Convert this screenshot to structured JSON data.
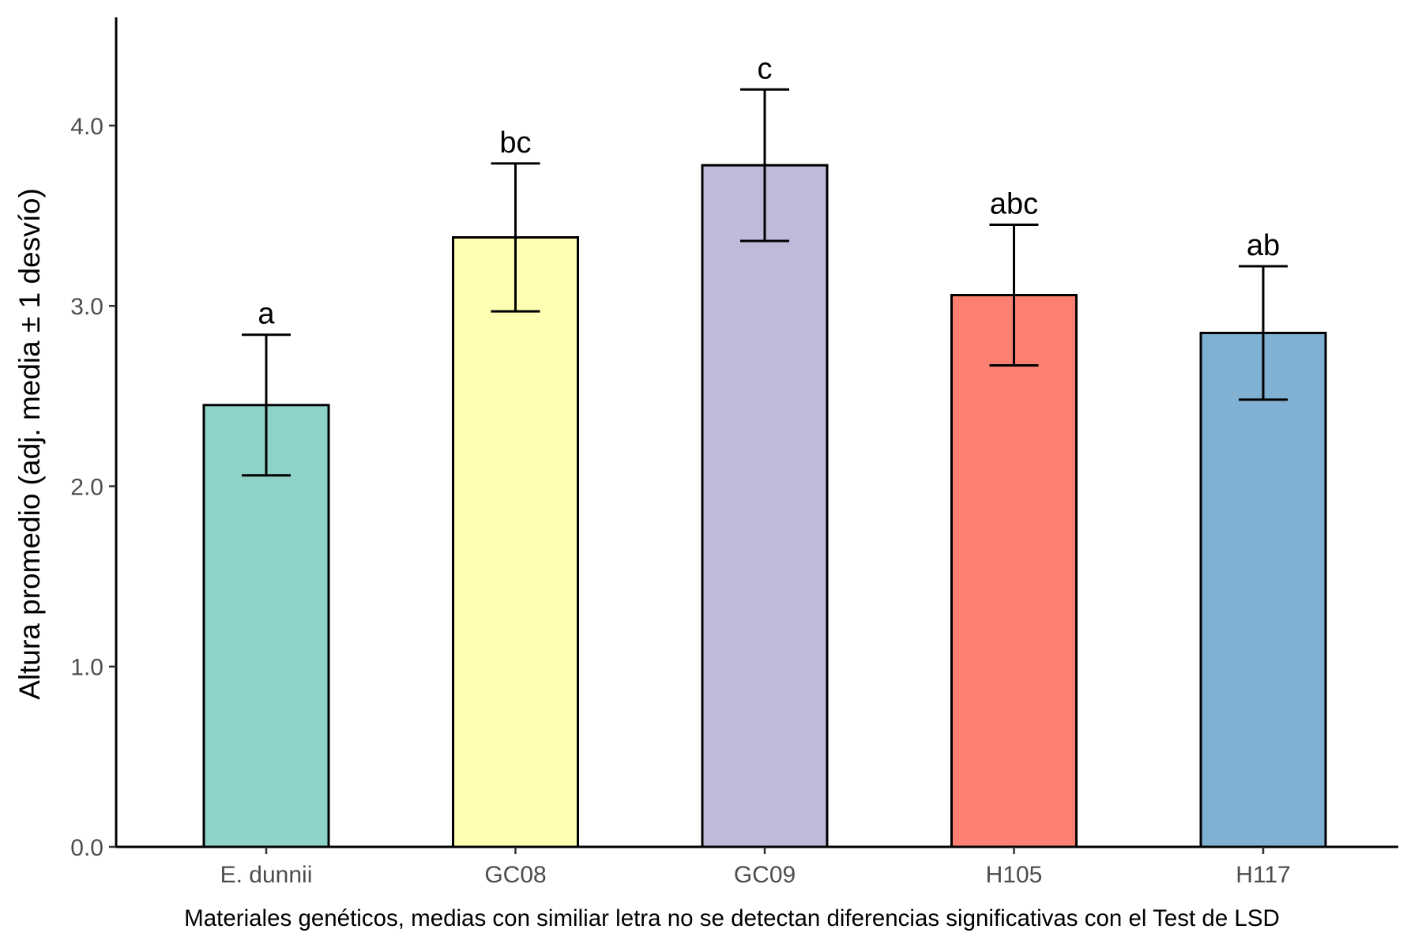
{
  "chart_data": {
    "type": "bar",
    "categories": [
      "E. dunnii",
      "GC08",
      "GC09",
      "H105",
      "H117"
    ],
    "values": [
      2.45,
      3.38,
      3.78,
      3.06,
      2.85
    ],
    "error_low": [
      2.06,
      2.97,
      3.36,
      2.67,
      2.48
    ],
    "error_high": [
      2.84,
      3.79,
      4.2,
      3.45,
      3.22
    ],
    "significance_labels": [
      "a",
      "bc",
      "c",
      "abc",
      "ab"
    ],
    "colors": [
      "#8DD3C7",
      "#FFFFB3",
      "#BEBADA",
      "#FB8072",
      "#80B1D3"
    ],
    "xlabel": "Materiales genéticos, medias con similiar letra no se detectan diferencias significativas con el Test de LSD",
    "ylabel": "Altura promedio (adj. media ± 1 desvío)",
    "ylim": [
      0,
      4.6
    ],
    "yticks": [
      0,
      1,
      2,
      3,
      4
    ],
    "ytick_labels": [
      "0.0",
      "1.0",
      "2.0",
      "3.0",
      "4.0"
    ],
    "grid": false,
    "legend": "none"
  }
}
